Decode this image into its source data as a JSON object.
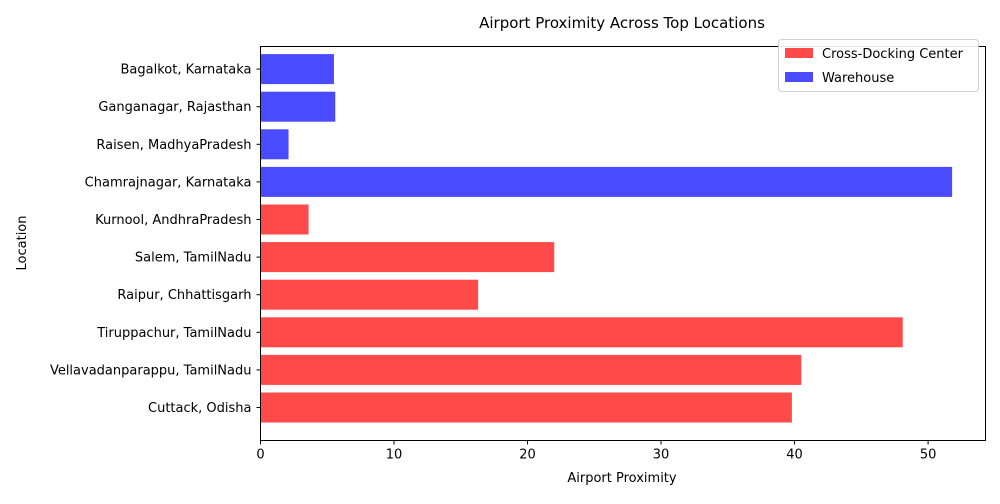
{
  "chart_data": {
    "type": "bar",
    "orientation": "horizontal",
    "title": "Airport Proximity Across Top Locations",
    "xlabel": "Airport Proximity",
    "ylabel": "Location",
    "xlim": [
      0,
      54.3
    ],
    "xticks": [
      0,
      10,
      20,
      30,
      40,
      50
    ],
    "grid": false,
    "legend_position": "top-right",
    "series": [
      {
        "name": "Cross-Docking Center",
        "color": "#ff4a4a"
      },
      {
        "name": "Warehouse",
        "color": "#4a4aff"
      }
    ],
    "categories": [
      "Cuttack, Odisha",
      "Vellavadanparappu, TamilNadu",
      "Tiruppachur, TamilNadu",
      "Raipur, Chhattisgarh",
      "Salem, TamilNadu",
      "Kurnool, AndhraPradesh",
      "Chamrajnagar, Karnataka",
      "Raisen, MadhyaPradesh",
      "Ganganagar, Rajasthan",
      "Bagalkot, Karnataka"
    ],
    "values": [
      39.8,
      40.5,
      48.1,
      16.3,
      22.0,
      3.6,
      51.8,
      2.1,
      5.6,
      5.5
    ],
    "bar_series": [
      "Cross-Docking Center",
      "Cross-Docking Center",
      "Cross-Docking Center",
      "Cross-Docking Center",
      "Cross-Docking Center",
      "Cross-Docking Center",
      "Warehouse",
      "Warehouse",
      "Warehouse",
      "Warehouse"
    ]
  }
}
